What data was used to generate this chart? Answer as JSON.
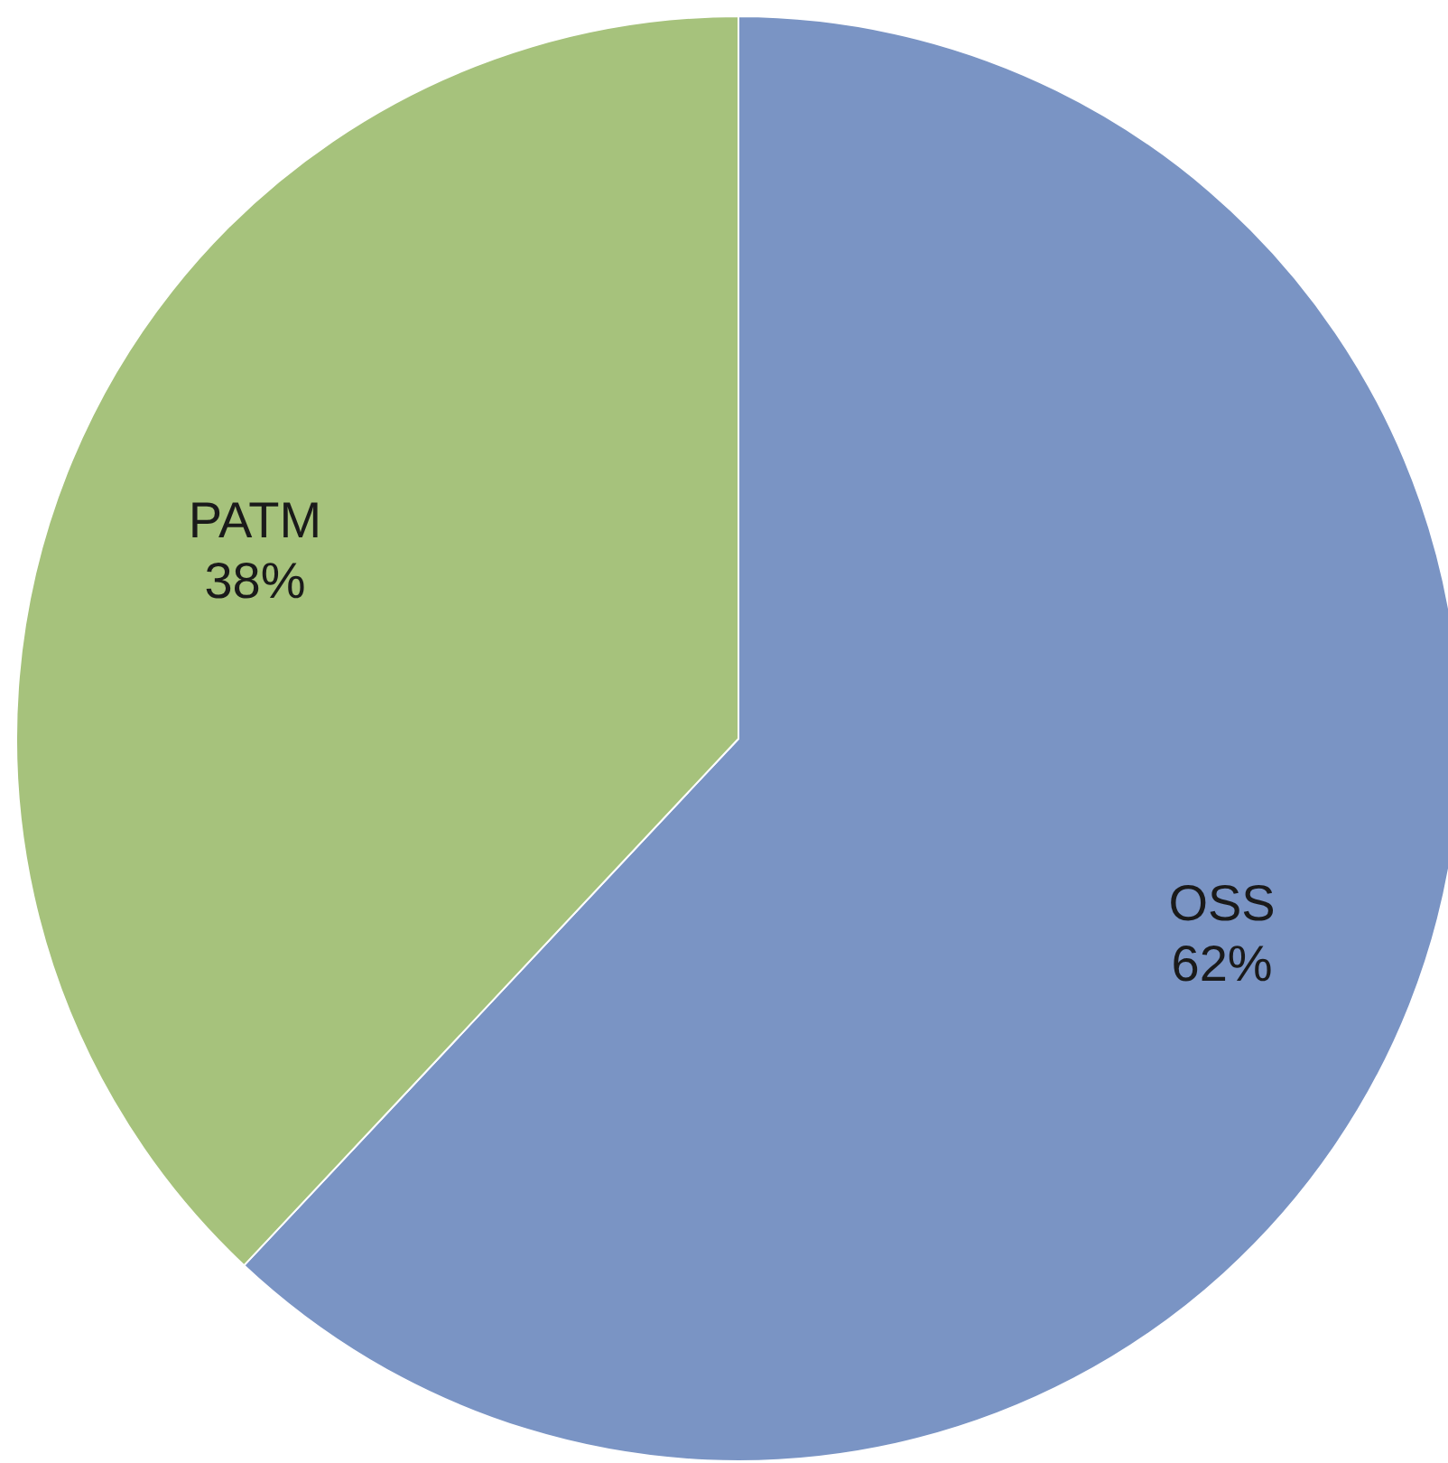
{
  "chart_data": {
    "type": "pie",
    "categories": [
      "OSS",
      "PATM"
    ],
    "values": [
      62,
      38
    ],
    "colors": [
      "#7a94c4",
      "#a6c27c"
    ],
    "value_labels": [
      "62%",
      "38%"
    ]
  }
}
